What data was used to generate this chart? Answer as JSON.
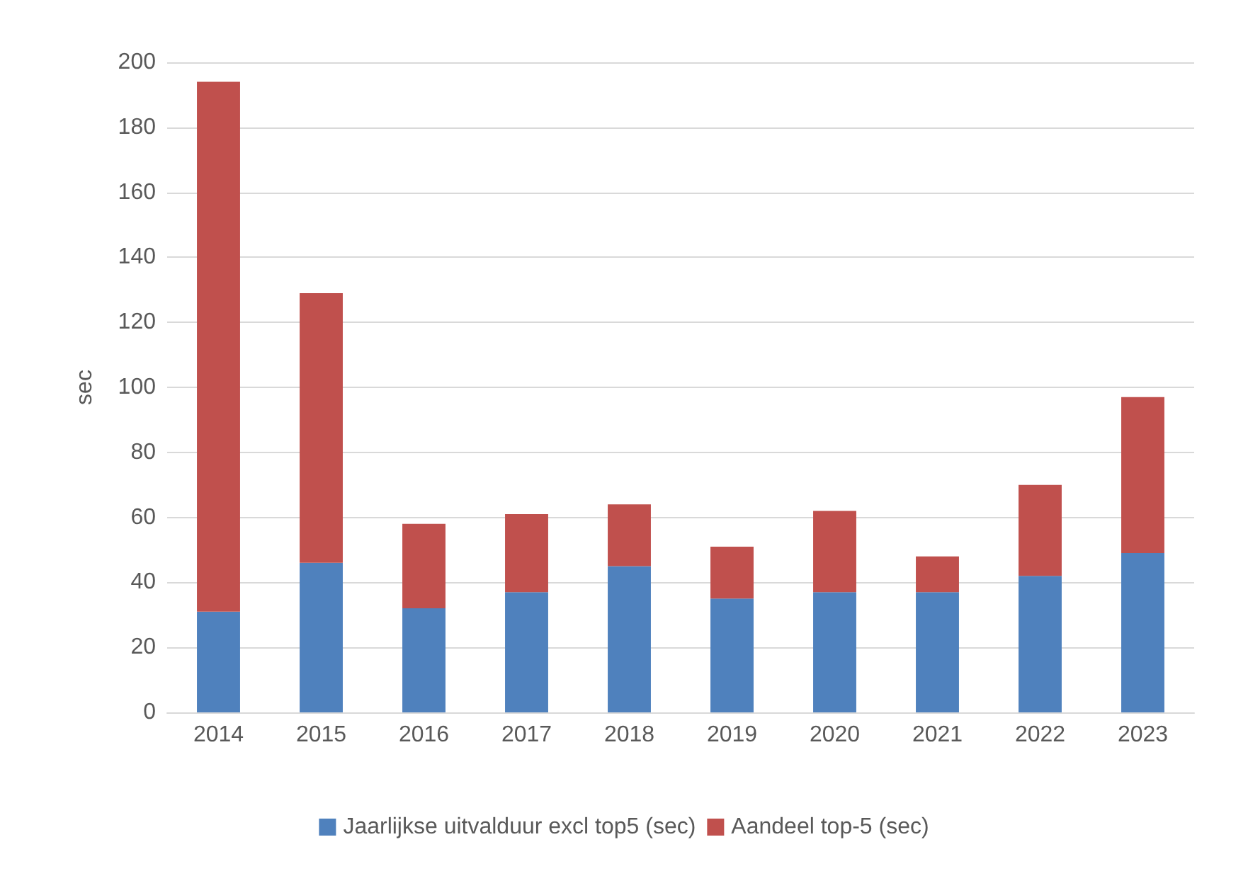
{
  "chart_data": {
    "type": "bar",
    "ylabel": "sec",
    "stacked": true,
    "categories": [
      "2014",
      "2015",
      "2016",
      "2017",
      "2018",
      "2019",
      "2020",
      "2021",
      "2022",
      "2023"
    ],
    "series": [
      {
        "name": "Jaarlijkse uitvalduur excl top5 (sec)",
        "color": "#4f81bd",
        "values": [
          31,
          46,
          32,
          37,
          45,
          35,
          37,
          37,
          42,
          49
        ]
      },
      {
        "name": "Aandeel top-5 (sec)",
        "color": "#c0504d",
        "values": [
          163,
          83,
          26,
          24,
          19,
          16,
          25,
          11,
          28,
          48
        ]
      }
    ],
    "ylim": [
      0,
      200
    ],
    "yticks": [
      0,
      20,
      40,
      60,
      80,
      100,
      120,
      140,
      160,
      180,
      200
    ],
    "grid": "y",
    "legend": "bottom"
  }
}
